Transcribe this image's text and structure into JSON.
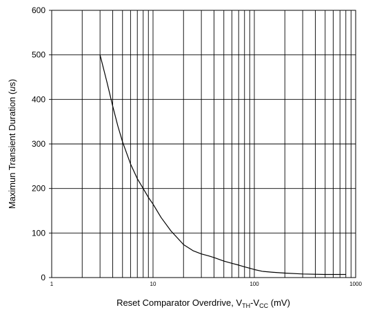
{
  "chart_data": {
    "type": "line",
    "title": "",
    "xlabel": {
      "text": "Reset Comparator Overdrive, VTH-VCC (mV)",
      "prefix": "Reset Comparator Overdrive, V",
      "sub1": "TH",
      "mid": "-V",
      "sub2": "CC",
      "suffix": " (mV)"
    },
    "ylabel": {
      "text": "Maximun Transient Duration (µs)",
      "prefix": "Maximun Transient Duration (",
      "unit_mu": "u",
      "suffix": "s)"
    },
    "x_scale": "log",
    "xlim": [
      1,
      1000
    ],
    "ylim": [
      0,
      600
    ],
    "x_ticks": [
      1,
      10,
      100,
      1000
    ],
    "x_tick_labels": [
      "1",
      "10",
      "100",
      "1000"
    ],
    "y_ticks": [
      0,
      100,
      200,
      300,
      400,
      500,
      600
    ],
    "y_tick_labels": [
      "0",
      "100",
      "200",
      "300",
      "400",
      "500",
      "600"
    ],
    "grid": true,
    "series": [
      {
        "color": "#000000",
        "x": [
          3,
          3.5,
          4,
          4.5,
          5,
          6,
          7,
          8,
          9,
          10,
          12,
          15,
          20,
          25,
          30,
          35,
          40,
          50,
          60,
          70,
          80,
          90,
          100,
          120,
          150,
          200,
          300,
          500,
          800
        ],
        "y": [
          500,
          440,
          385,
          340,
          305,
          255,
          222,
          200,
          180,
          165,
          135,
          105,
          74,
          60,
          53,
          49,
          45,
          37,
          32,
          28,
          24,
          21,
          18,
          14,
          12,
          10,
          8,
          7,
          7
        ]
      }
    ]
  }
}
